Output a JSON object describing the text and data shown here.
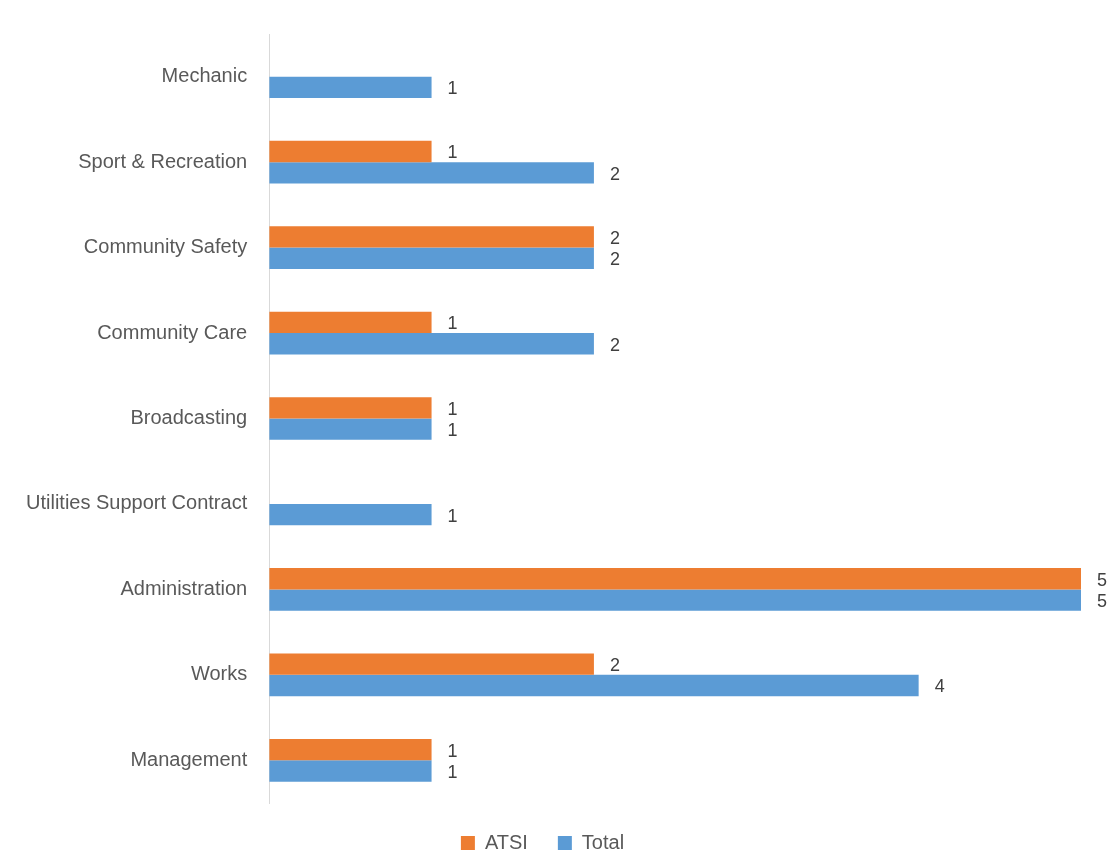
{
  "chart_data": {
    "type": "bar",
    "orientation": "horizontal",
    "categories": [
      "Mechanic",
      "Sport & Recreation",
      "Community Safety",
      "Community Care",
      "Broadcasting",
      "Utilities Support Contract",
      "Administration",
      "Works",
      "Management"
    ],
    "series": [
      {
        "name": "ATSI",
        "color": "#ed7d31",
        "values": [
          null,
          1,
          2,
          1,
          1,
          null,
          5,
          2,
          1
        ]
      },
      {
        "name": "Total",
        "color": "#5b9bd5",
        "values": [
          1,
          2,
          2,
          2,
          1,
          1,
          5,
          4,
          1
        ]
      }
    ],
    "xlim": [
      0,
      5
    ],
    "tick_labels": "y",
    "legend": "bottom",
    "data_labels": true
  }
}
